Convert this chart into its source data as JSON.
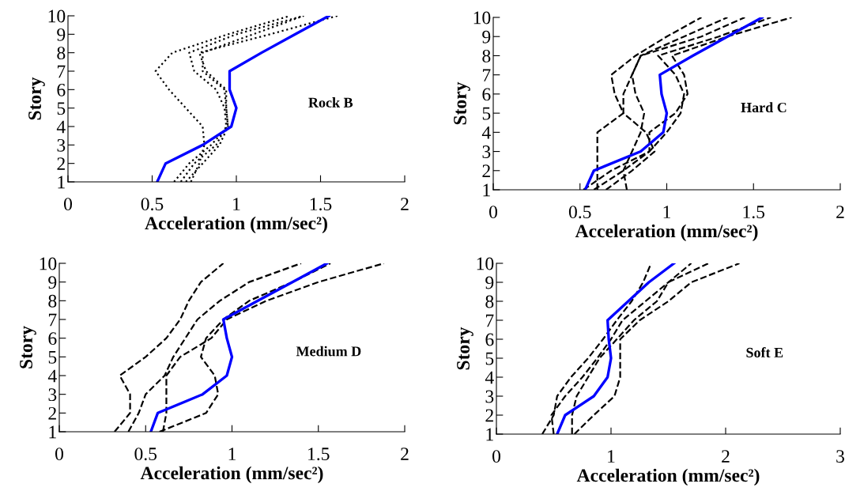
{
  "chart_data": [
    {
      "type": "line",
      "xlabel": "Acceleration (mm/sec²)",
      "ylabel": "Story",
      "annotations": [
        "Rock B"
      ],
      "xlim": [
        0,
        2
      ],
      "xticks": [
        0,
        0.5,
        1,
        1.5,
        2
      ],
      "ylim": [
        1,
        10
      ],
      "yticks": [
        1,
        2,
        3,
        4,
        5,
        6,
        7,
        8,
        9,
        10
      ],
      "grid": false,
      "series": [
        {
          "color": "#000000",
          "line_style": "dotted",
          "x": [
            0.73,
            0.78,
            0.81,
            0.8,
            0.7,
            0.6,
            0.52,
            0.62,
            0.95,
            1.32
          ],
          "values": [
            1,
            2,
            3,
            4,
            5,
            6,
            7,
            8,
            9,
            10
          ]
        },
        {
          "color": "#000000",
          "line_style": "dotted",
          "x": [
            0.67,
            0.75,
            0.88,
            0.94,
            0.93,
            0.88,
            0.75,
            0.72,
            1.0,
            1.4
          ],
          "values": [
            1,
            2,
            3,
            4,
            5,
            6,
            7,
            8,
            9,
            10
          ]
        },
        {
          "color": "#000000",
          "line_style": "dotted",
          "x": [
            0.63,
            0.72,
            0.85,
            0.95,
            0.94,
            0.94,
            0.82,
            0.78,
            1.2,
            1.6
          ],
          "values": [
            1,
            2,
            3,
            4,
            5,
            6,
            7,
            8,
            9,
            10
          ]
        },
        {
          "color": "#000000",
          "line_style": "dotted",
          "x": [
            0.7,
            0.8,
            0.9,
            0.95,
            0.94,
            0.93,
            0.8,
            0.8,
            1.1,
            1.4
          ],
          "values": [
            1,
            2,
            3,
            4,
            5,
            6,
            7,
            8,
            9,
            10
          ]
        },
        {
          "color": "#0000ff",
          "line_style": "solid",
          "x": [
            0.53,
            0.58,
            0.8,
            0.97,
            1.0,
            0.96,
            0.96,
            1.15,
            1.35,
            1.55
          ],
          "values": [
            1,
            2,
            3,
            4,
            5,
            6,
            7,
            8,
            9,
            10
          ]
        }
      ]
    },
    {
      "type": "line",
      "xlabel": "Acceleration (mm/sec²)",
      "ylabel": "Story",
      "annotations": [
        "Hard C"
      ],
      "xlim": [
        0,
        2
      ],
      "xticks": [
        0,
        0.5,
        1,
        1.5,
        2
      ],
      "ylim": [
        1,
        10
      ],
      "yticks": [
        1,
        2,
        3,
        4,
        5,
        6,
        7,
        8,
        9,
        10
      ],
      "grid": false,
      "series": [
        {
          "color": "#000000",
          "line_style": "dashed",
          "x": [
            0.6,
            0.6,
            0.6,
            0.6,
            0.75,
            0.7,
            0.68,
            0.82,
            1.0,
            1.2
          ],
          "values": [
            1,
            2,
            3,
            4,
            5,
            6,
            7,
            8,
            9,
            10
          ]
        },
        {
          "color": "#000000",
          "line_style": "dashed",
          "x": [
            0.77,
            0.75,
            0.8,
            0.85,
            0.87,
            0.82,
            0.8,
            0.85,
            1.1,
            1.35
          ],
          "values": [
            1,
            2,
            3,
            4,
            5,
            6,
            7,
            8,
            9,
            10
          ]
        },
        {
          "color": "#000000",
          "line_style": "dashed",
          "x": [
            0.65,
            0.8,
            0.93,
            0.88,
            0.75,
            0.75,
            0.8,
            0.85,
            1.2,
            1.45
          ],
          "values": [
            1,
            2,
            3,
            4,
            5,
            6,
            7,
            8,
            9,
            10
          ]
        },
        {
          "color": "#000000",
          "line_style": "dashed",
          "x": [
            0.52,
            0.68,
            0.9,
            1.0,
            1.08,
            1.1,
            1.05,
            0.95,
            1.3,
            1.6
          ],
          "values": [
            1,
            2,
            3,
            4,
            5,
            6,
            7,
            8,
            9,
            10
          ]
        },
        {
          "color": "#000000",
          "line_style": "dashed",
          "x": [
            0.58,
            0.75,
            0.9,
            0.9,
            1.05,
            1.12,
            1.1,
            1.03,
            1.35,
            1.72
          ],
          "values": [
            1,
            2,
            3,
            4,
            5,
            6,
            7,
            8,
            9,
            10
          ]
        },
        {
          "color": "#0000ff",
          "line_style": "solid",
          "x": [
            0.53,
            0.58,
            0.85,
            0.98,
            1.0,
            0.97,
            0.96,
            1.15,
            1.35,
            1.55
          ],
          "values": [
            1,
            2,
            3,
            4,
            5,
            6,
            7,
            8,
            9,
            10
          ]
        }
      ]
    },
    {
      "type": "line",
      "xlabel": "Acceleration (mm/sec²)",
      "ylabel": "Story",
      "annotations": [
        "Medium D"
      ],
      "xlim": [
        0,
        2
      ],
      "xticks": [
        0,
        0.5,
        1,
        1.5,
        2
      ],
      "ylim": [
        1,
        10
      ],
      "yticks": [
        1,
        2,
        3,
        4,
        5,
        6,
        7,
        8,
        9,
        10
      ],
      "grid": false,
      "series": [
        {
          "color": "#000000",
          "line_style": "dashed",
          "x": [
            0.32,
            0.41,
            0.41,
            0.35,
            0.5,
            0.62,
            0.7,
            0.75,
            0.82,
            0.95
          ],
          "values": [
            1,
            2,
            3,
            4,
            5,
            6,
            7,
            8,
            9,
            10
          ]
        },
        {
          "color": "#000000",
          "line_style": "dashed",
          "x": [
            0.4,
            0.46,
            0.5,
            0.61,
            0.66,
            0.73,
            0.8,
            0.93,
            1.1,
            1.4
          ],
          "values": [
            1,
            2,
            3,
            4,
            5,
            6,
            7,
            8,
            9,
            10
          ]
        },
        {
          "color": "#000000",
          "line_style": "dashed",
          "x": [
            0.58,
            0.85,
            0.92,
            0.9,
            0.82,
            0.85,
            0.95,
            1.1,
            1.35,
            1.57
          ],
          "values": [
            1,
            2,
            3,
            4,
            5,
            6,
            7,
            8,
            9,
            10
          ]
        },
        {
          "color": "#000000",
          "line_style": "dashed",
          "x": [
            0.6,
            0.62,
            0.62,
            0.62,
            0.7,
            0.88,
            0.97,
            1.2,
            1.5,
            1.88
          ],
          "values": [
            1,
            2,
            3,
            4,
            5,
            6,
            7,
            8,
            9,
            10
          ]
        },
        {
          "color": "#0000ff",
          "line_style": "solid",
          "x": [
            0.53,
            0.57,
            0.83,
            0.97,
            1.0,
            0.97,
            0.95,
            1.15,
            1.35,
            1.55
          ],
          "values": [
            1,
            2,
            3,
            4,
            5,
            6,
            7,
            8,
            9,
            10
          ]
        }
      ]
    },
    {
      "type": "line",
      "xlabel": "Acceleration (mm/sec²)",
      "ylabel": "Story",
      "annotations": [
        "Soft E"
      ],
      "xlim": [
        0,
        3
      ],
      "xticks": [
        0,
        1,
        2,
        3
      ],
      "ylim": [
        1,
        10
      ],
      "yticks": [
        1,
        2,
        3,
        4,
        5,
        6,
        7,
        8,
        9,
        10
      ],
      "grid": false,
      "series": [
        {
          "color": "#000000",
          "line_style": "dashed",
          "x": [
            0.4,
            0.5,
            0.53,
            0.65,
            0.8,
            0.93,
            1.05,
            1.18,
            1.28,
            1.35
          ],
          "values": [
            1,
            2,
            3,
            4,
            5,
            6,
            7,
            8,
            9,
            10
          ]
        },
        {
          "color": "#000000",
          "line_style": "dashed",
          "x": [
            0.5,
            0.48,
            0.6,
            0.75,
            0.88,
            1.0,
            1.1,
            1.3,
            1.5,
            1.7
          ],
          "values": [
            1,
            2,
            3,
            4,
            5,
            6,
            7,
            8,
            9,
            10
          ]
        },
        {
          "color": "#000000",
          "line_style": "dashed",
          "x": [
            0.66,
            0.66,
            0.7,
            0.8,
            0.9,
            1.05,
            1.2,
            1.4,
            1.5,
            1.85
          ],
          "values": [
            1,
            2,
            3,
            4,
            5,
            6,
            7,
            8,
            9,
            10
          ]
        },
        {
          "color": "#000000",
          "line_style": "dashed",
          "x": [
            0.68,
            0.85,
            1.03,
            1.08,
            1.08,
            1.08,
            1.25,
            1.5,
            1.7,
            2.12
          ],
          "values": [
            1,
            2,
            3,
            4,
            5,
            6,
            7,
            8,
            9,
            10
          ]
        },
        {
          "color": "#0000ff",
          "line_style": "solid",
          "x": [
            0.53,
            0.6,
            0.85,
            0.97,
            1.0,
            0.98,
            0.97,
            1.15,
            1.33,
            1.55
          ],
          "values": [
            1,
            2,
            3,
            4,
            5,
            6,
            7,
            8,
            9,
            10
          ]
        }
      ]
    }
  ]
}
